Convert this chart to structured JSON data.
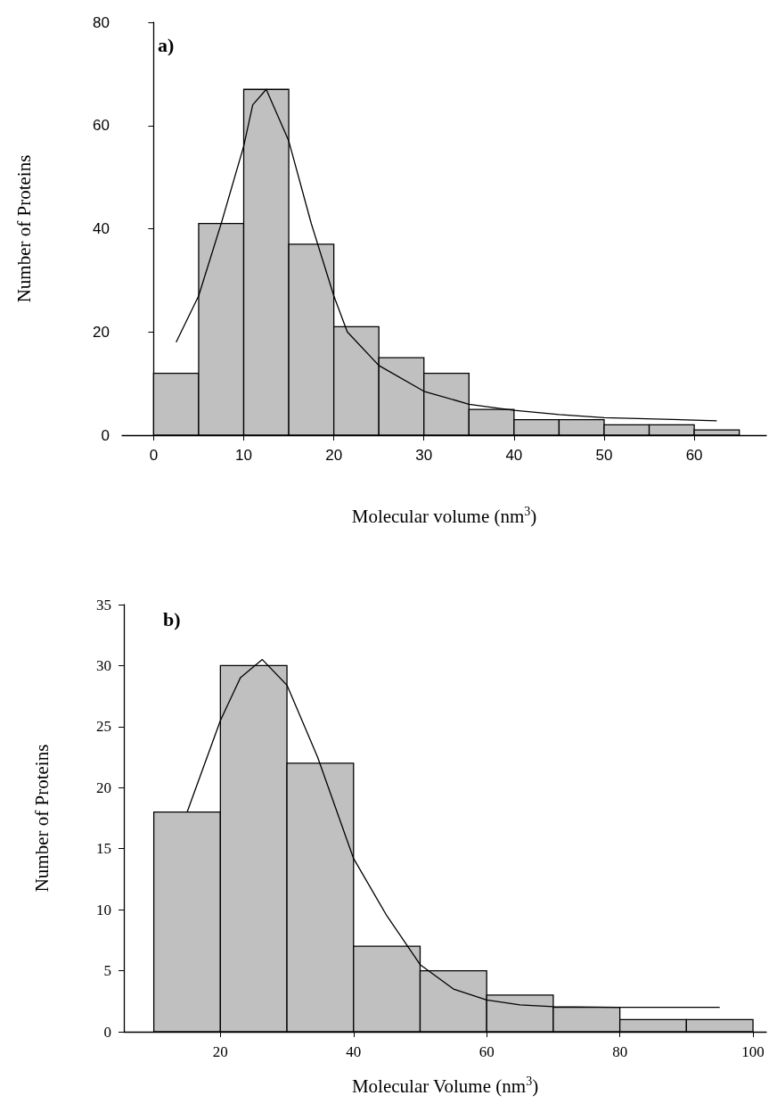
{
  "chart_data": [
    {
      "type": "histogram",
      "title": "a)",
      "xlabel": "Molecular volume (nm$^{3}$)",
      "ylabel": "Number of Proteins",
      "xlim": [
        -3.5,
        68
      ],
      "xticks": [
        0,
        10,
        20,
        30,
        40,
        50,
        60
      ],
      "ylim": [
        0,
        80
      ],
      "yticks": [
        0,
        20,
        40,
        60,
        80
      ],
      "marker": "none",
      "series": [
        {
          "color": "#c0c0c0",
          "bins": [
            0,
            5,
            10,
            15,
            20,
            25,
            30,
            35,
            40,
            45,
            50,
            55,
            60,
            65
          ],
          "values": [
            12,
            41,
            67,
            37,
            21,
            15,
            12,
            5,
            3,
            3,
            2,
            2,
            1
          ]
        },
        {
          "type": "line",
          "color": "#000000",
          "x": [
            2.5,
            5,
            7.5,
            10,
            11,
            12.5,
            15,
            17.5,
            20,
            21.5,
            25,
            30,
            35,
            40,
            45,
            50,
            62.5
          ],
          "values": [
            18,
            27,
            41,
            56,
            64,
            67,
            57,
            41,
            27,
            20,
            13.5,
            8.5,
            6,
            4.8,
            4,
            3.4,
            2.8
          ]
        }
      ]
    },
    {
      "type": "histogram",
      "title": "b)",
      "xlabel": "Molecular Volume (nm$^{3}$)",
      "ylabel": "Number of Proteins",
      "xlim": [
        5.5,
        102
      ],
      "xticks": [
        20,
        40,
        60,
        80,
        100
      ],
      "ylim": [
        0,
        35
      ],
      "yticks": [
        0,
        5,
        10,
        15,
        20,
        25,
        30,
        35
      ],
      "marker": "none",
      "series": [
        {
          "color": "#c0c0c0",
          "bins": [
            10,
            20,
            30,
            40,
            50,
            60,
            70,
            80,
            90,
            100
          ],
          "values": [
            18,
            30,
            22,
            7,
            5,
            3,
            2,
            1,
            1
          ]
        },
        {
          "type": "line",
          "color": "#000000",
          "x": [
            15,
            20,
            23,
            26.3,
            30,
            34.6,
            40,
            45,
            50,
            55,
            60,
            65,
            70,
            80,
            95
          ],
          "values": [
            18,
            25.5,
            29,
            30.5,
            28.4,
            22.5,
            14.2,
            9.5,
            5.5,
            3.5,
            2.6,
            2.2,
            2.05,
            2,
            2
          ]
        }
      ]
    }
  ]
}
